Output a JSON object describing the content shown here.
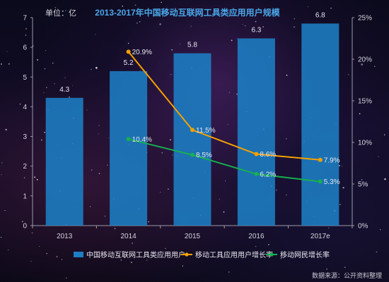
{
  "chart_data": {
    "type": "bar",
    "title": "2013-2017年中国移动互联网工具类应用用户规模",
    "unit_label": "单位：亿",
    "categories": [
      "2013",
      "2014",
      "2015",
      "2016",
      "2017e"
    ],
    "ylim": [
      0,
      7
    ],
    "y2lim": [
      0,
      25
    ],
    "y_ticks": [
      "0",
      "1",
      "2",
      "3",
      "4",
      "5",
      "6",
      "7"
    ],
    "y2_ticks": [
      "0%",
      "5%",
      "10%",
      "15%",
      "20%",
      "25%"
    ],
    "grid": false,
    "legend_position": "bottom",
    "bar_series": {
      "name": "中国移动互联网工具类应用用户",
      "values": [
        4.3,
        5.2,
        5.8,
        6.3,
        6.8
      ],
      "labels": [
        "4.3",
        "5.2",
        "5.8",
        "6.3",
        "6.8"
      ],
      "color": "#1c7ec4"
    },
    "line_series": [
      {
        "name": "移动工具应用用户增长率",
        "axis": "right",
        "start_index": 1,
        "values": [
          20.9,
          11.5,
          8.6,
          7.9
        ],
        "labels": [
          "20.9%",
          "11.5%",
          "8.6%",
          "7.9%"
        ],
        "color": "#f5a100"
      },
      {
        "name": "移动网民增长率",
        "axis": "right",
        "start_index": 1,
        "values": [
          10.4,
          8.5,
          6.2,
          5.3
        ],
        "labels": [
          "10.4%",
          "8.5%",
          "6.2%",
          "5.3%"
        ],
        "color": "#17b04f"
      }
    ],
    "source": "数据来源：公开资料整理"
  }
}
